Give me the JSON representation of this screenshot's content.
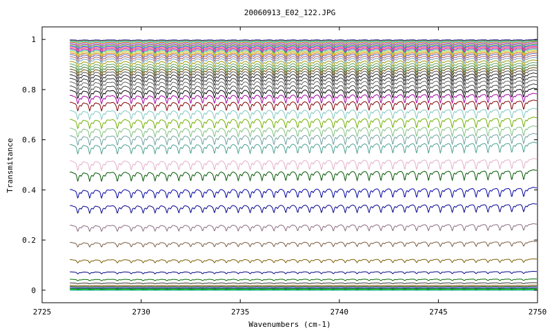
{
  "chart_data": {
    "type": "line",
    "title": "20060913_E02_122.JPG",
    "xlabel": "Wavenumbers (cm-1)",
    "ylabel": "Transmitance",
    "xlim": [
      2725,
      2750
    ],
    "ylim": [
      -0.05,
      1.05
    ],
    "x_ticks": [
      "2725",
      "2730",
      "2735",
      "2740",
      "2745",
      "2750"
    ],
    "y_ticks": [
      "0",
      "0.2",
      "0.4",
      "0.6",
      "0.8",
      "1"
    ],
    "x_start": 2726.4,
    "x_end": 2750,
    "grid": false,
    "legend": "none",
    "line_positions": [
      2726.8,
      2727.4,
      2728.0,
      2728.8,
      2729.5,
      2730.1,
      2730.7,
      2731.3,
      2731.9,
      2732.5,
      2733.1,
      2733.7,
      2734.3,
      2734.9,
      2735.5,
      2736.1,
      2736.7,
      2737.3,
      2737.9,
      2738.5,
      2739.1,
      2739.7,
      2740.3,
      2740.9,
      2741.5,
      2742.1,
      2742.7,
      2743.3,
      2743.9,
      2744.5,
      2745.1,
      2745.7,
      2746.3,
      2746.9,
      2747.5,
      2748.1,
      2748.7,
      2749.3
    ],
    "series": [
      {
        "baseline": 0.0,
        "depth": 0.0,
        "color": "#00a8a8"
      },
      {
        "baseline": 0.003,
        "depth": 0.001,
        "color": "#00aa00"
      },
      {
        "baseline": 0.006,
        "depth": 0.001,
        "color": "#009000"
      },
      {
        "baseline": 0.01,
        "depth": 0.002,
        "color": "#0000aa"
      },
      {
        "baseline": 0.015,
        "depth": 0.002,
        "color": "#004400"
      },
      {
        "baseline": 0.02,
        "depth": 0.003,
        "color": "#7a4a00"
      },
      {
        "baseline": 0.03,
        "depth": 0.004,
        "color": "#333333"
      },
      {
        "baseline": 0.045,
        "depth": 0.006,
        "color": "#006600"
      },
      {
        "baseline": 0.075,
        "depth": 0.008,
        "color": "#000080"
      },
      {
        "baseline": 0.125,
        "depth": 0.013,
        "color": "#7a5a00"
      },
      {
        "baseline": 0.195,
        "depth": 0.018,
        "color": "#7a5a40"
      },
      {
        "baseline": 0.265,
        "depth": 0.024,
        "color": "#8a6a80"
      },
      {
        "baseline": 0.345,
        "depth": 0.03,
        "color": "#00008a"
      },
      {
        "baseline": 0.41,
        "depth": 0.034,
        "color": "#0000a0"
      },
      {
        "baseline": 0.48,
        "depth": 0.036,
        "color": "#005500"
      },
      {
        "baseline": 0.525,
        "depth": 0.037,
        "color": "#e3b0c8"
      },
      {
        "baseline": 0.59,
        "depth": 0.037,
        "color": "#4aa090"
      },
      {
        "baseline": 0.625,
        "depth": 0.037,
        "color": "#70a0a0"
      },
      {
        "baseline": 0.655,
        "depth": 0.036,
        "color": "#80c080"
      },
      {
        "baseline": 0.69,
        "depth": 0.036,
        "color": "#70b000"
      },
      {
        "baseline": 0.725,
        "depth": 0.035,
        "color": "#80c8c0"
      },
      {
        "baseline": 0.758,
        "depth": 0.034,
        "color": "#800000"
      },
      {
        "baseline": 0.785,
        "depth": 0.033,
        "color": "#a000a0"
      },
      {
        "baseline": 0.805,
        "depth": 0.032,
        "color": "#000000"
      },
      {
        "baseline": 0.822,
        "depth": 0.031,
        "color": "#404040"
      },
      {
        "baseline": 0.838,
        "depth": 0.03,
        "color": "#606060"
      },
      {
        "baseline": 0.852,
        "depth": 0.029,
        "color": "#303030"
      },
      {
        "baseline": 0.866,
        "depth": 0.028,
        "color": "#202020"
      },
      {
        "baseline": 0.878,
        "depth": 0.027,
        "color": "#505050"
      },
      {
        "baseline": 0.888,
        "depth": 0.026,
        "color": "#6a4a00"
      },
      {
        "baseline": 0.898,
        "depth": 0.025,
        "color": "#3a7a3a"
      },
      {
        "baseline": 0.908,
        "depth": 0.024,
        "color": "#60a060"
      },
      {
        "baseline": 0.918,
        "depth": 0.022,
        "color": "#9a9a00"
      },
      {
        "baseline": 0.928,
        "depth": 0.02,
        "color": "#70a0c0"
      },
      {
        "baseline": 0.936,
        "depth": 0.019,
        "color": "#b06060"
      },
      {
        "baseline": 0.944,
        "depth": 0.018,
        "color": "#6060b0"
      },
      {
        "baseline": 0.95,
        "depth": 0.017,
        "color": "#d07000"
      },
      {
        "baseline": 0.956,
        "depth": 0.016,
        "color": "#c0c000"
      },
      {
        "baseline": 0.962,
        "depth": 0.015,
        "color": "#20a080"
      },
      {
        "baseline": 0.967,
        "depth": 0.014,
        "color": "#b000b0"
      },
      {
        "baseline": 0.972,
        "depth": 0.013,
        "color": "#ff4040"
      },
      {
        "baseline": 0.976,
        "depth": 0.012,
        "color": "#4040ff"
      },
      {
        "baseline": 0.98,
        "depth": 0.011,
        "color": "#40c040"
      },
      {
        "baseline": 0.984,
        "depth": 0.01,
        "color": "#c04080"
      },
      {
        "baseline": 0.988,
        "depth": 0.009,
        "color": "#8080ff"
      },
      {
        "baseline": 0.991,
        "depth": 0.008,
        "color": "#ff8000"
      },
      {
        "baseline": 0.994,
        "depth": 0.006,
        "color": "#00c0c0"
      },
      {
        "baseline": 0.997,
        "depth": 0.004,
        "color": "#808000"
      },
      {
        "baseline": 0.999,
        "depth": 0.003,
        "color": "#2020a0"
      }
    ]
  }
}
